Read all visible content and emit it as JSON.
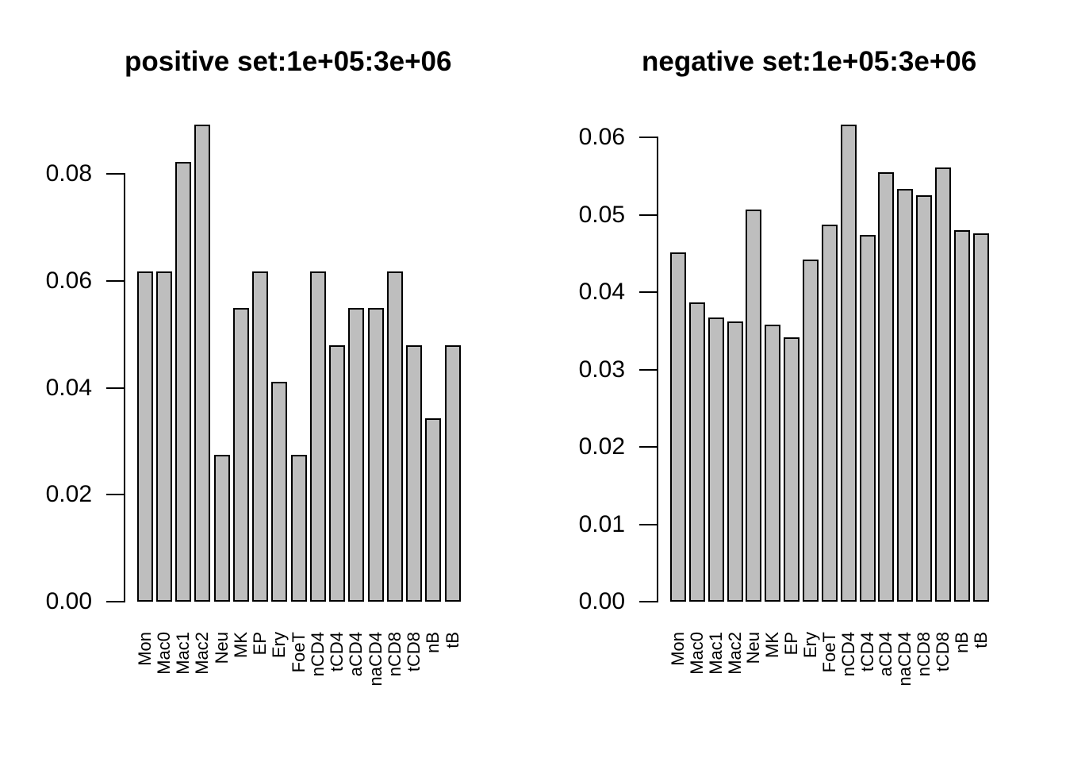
{
  "colors": {
    "bar_fill": "#bebebe",
    "bar_border": "#000000",
    "background": "#ffffff",
    "text": "#000000"
  },
  "chart_data": [
    {
      "type": "bar",
      "title": "positive set:1e+05:3e+06",
      "categories": [
        "Mon",
        "Mac0",
        "Mac1",
        "Mac2",
        "Neu",
        "MK",
        "EP",
        "Ery",
        "FoeT",
        "nCD4",
        "tCD4",
        "aCD4",
        "naCD4",
        "nCD8",
        "tCD8",
        "nB",
        "tB"
      ],
      "values": [
        0.0617,
        0.0617,
        0.0823,
        0.0892,
        0.0274,
        0.0549,
        0.0617,
        0.0411,
        0.0274,
        0.0617,
        0.048,
        0.0549,
        0.0549,
        0.0617,
        0.048,
        0.0343,
        0.048
      ],
      "xlabel": "",
      "ylabel": "",
      "ylim": [
        0,
        0.09
      ],
      "y_tick_values": [
        0,
        0.02,
        0.04,
        0.06,
        0.08
      ],
      "y_tick_labels": [
        "0.00",
        "0.02",
        "0.04",
        "0.06",
        "0.08"
      ],
      "grid": "off",
      "legend": "none",
      "x_labels_rotation": "90deg counterclockwise"
    },
    {
      "type": "bar",
      "title": "negative set:1e+05:3e+06",
      "categories": [
        "Mon",
        "Mac0",
        "Mac1",
        "Mac2",
        "Neu",
        "MK",
        "EP",
        "Ery",
        "FoeT",
        "nCD4",
        "tCD4",
        "aCD4",
        "naCD4",
        "nCD8",
        "tCD8",
        "nB",
        "tB"
      ],
      "values": [
        0.0451,
        0.0387,
        0.0367,
        0.0362,
        0.0507,
        0.0358,
        0.0342,
        0.0442,
        0.0487,
        0.0616,
        0.0474,
        0.0555,
        0.0533,
        0.0525,
        0.0561,
        0.048,
        0.0476
      ],
      "xlabel": "",
      "ylabel": "",
      "ylim": [
        0,
        0.0616
      ],
      "y_tick_values": [
        0,
        0.01,
        0.02,
        0.03,
        0.04,
        0.05,
        0.06
      ],
      "y_tick_labels": [
        "0.00",
        "0.01",
        "0.02",
        "0.03",
        "0.04",
        "0.05",
        "0.06"
      ],
      "grid": "off",
      "legend": "none",
      "x_labels_rotation": "90deg counterclockwise"
    }
  ]
}
